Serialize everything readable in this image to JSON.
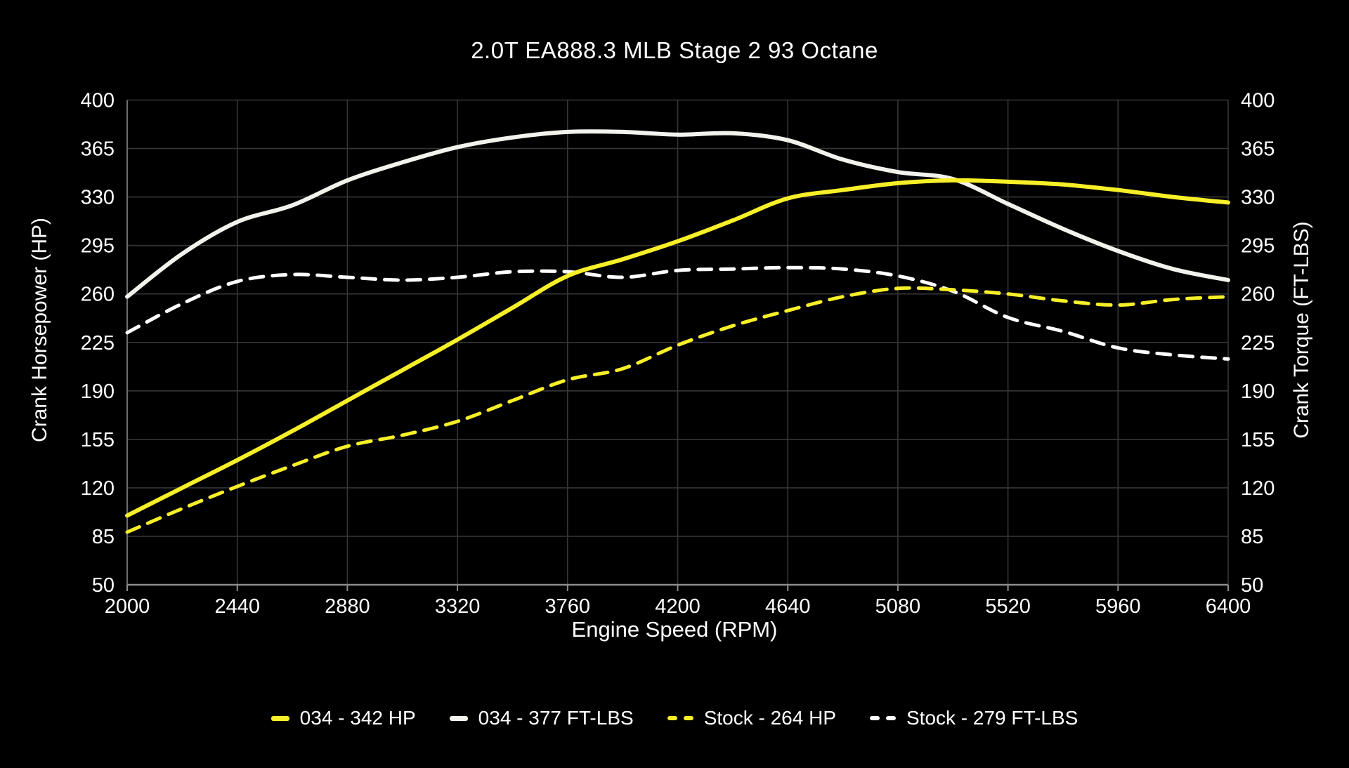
{
  "chart_data": {
    "type": "line",
    "title": "2.0T EA888.3 MLB Stage 2 93 Octane",
    "xlabel": "Engine Speed (RPM)",
    "ylabel_left": "Crank Horsepower (HP)",
    "ylabel_right": "Crank Torque (FT-LBS)",
    "xlim": [
      2000,
      6400
    ],
    "ylim": [
      50,
      400
    ],
    "x_ticks": [
      2000,
      2440,
      2880,
      3320,
      3760,
      4200,
      4640,
      5080,
      5520,
      5960,
      6400
    ],
    "y_ticks": [
      400,
      365,
      330,
      295,
      260,
      225,
      190,
      155,
      120,
      85,
      50
    ],
    "grid": true,
    "legend_position": "bottom",
    "x": [
      2000,
      2220,
      2440,
      2660,
      2880,
      3100,
      3320,
      3540,
      3760,
      3980,
      4200,
      4420,
      4640,
      4860,
      5080,
      5300,
      5520,
      5740,
      5960,
      6180,
      6400
    ],
    "series": [
      {
        "name": "034 - 342 HP",
        "color": "#f7ef28",
        "dash": false,
        "width": 6,
        "values": [
          100,
          120,
          140,
          161,
          183,
          205,
          227,
          250,
          273,
          285,
          298,
          313,
          329,
          335,
          340,
          342,
          341,
          339,
          335,
          330,
          326
        ]
      },
      {
        "name": "034 - 377 FT-LBS",
        "color": "#f3f2ec",
        "dash": false,
        "width": 6,
        "values": [
          258,
          289,
          312,
          324,
          342,
          355,
          366,
          373,
          377,
          377,
          375,
          376,
          371,
          357,
          348,
          343,
          325,
          307,
          291,
          278,
          270
        ]
      },
      {
        "name": "Stock - 264 HP",
        "color": "#f7ef28",
        "dash": true,
        "width": 5,
        "values": [
          88,
          105,
          121,
          136,
          150,
          158,
          168,
          183,
          198,
          206,
          223,
          237,
          248,
          258,
          264,
          263,
          260,
          255,
          252,
          256,
          258
        ]
      },
      {
        "name": "Stock - 279 FT-LBS",
        "color": "#ffffff",
        "dash": true,
        "width": 5,
        "values": [
          232,
          253,
          269,
          274,
          272,
          270,
          272,
          276,
          276,
          272,
          277,
          278,
          279,
          278,
          273,
          262,
          243,
          233,
          221,
          216,
          213
        ]
      }
    ]
  },
  "colors": {
    "background": "#000000",
    "grid": "#363636",
    "spine_left": "#6e6e6e",
    "spine_bottom": "#8c8c8c",
    "text": "#ffffff",
    "accent_yellow": "#f7ef28",
    "accent_white": "#f3f2ec"
  }
}
